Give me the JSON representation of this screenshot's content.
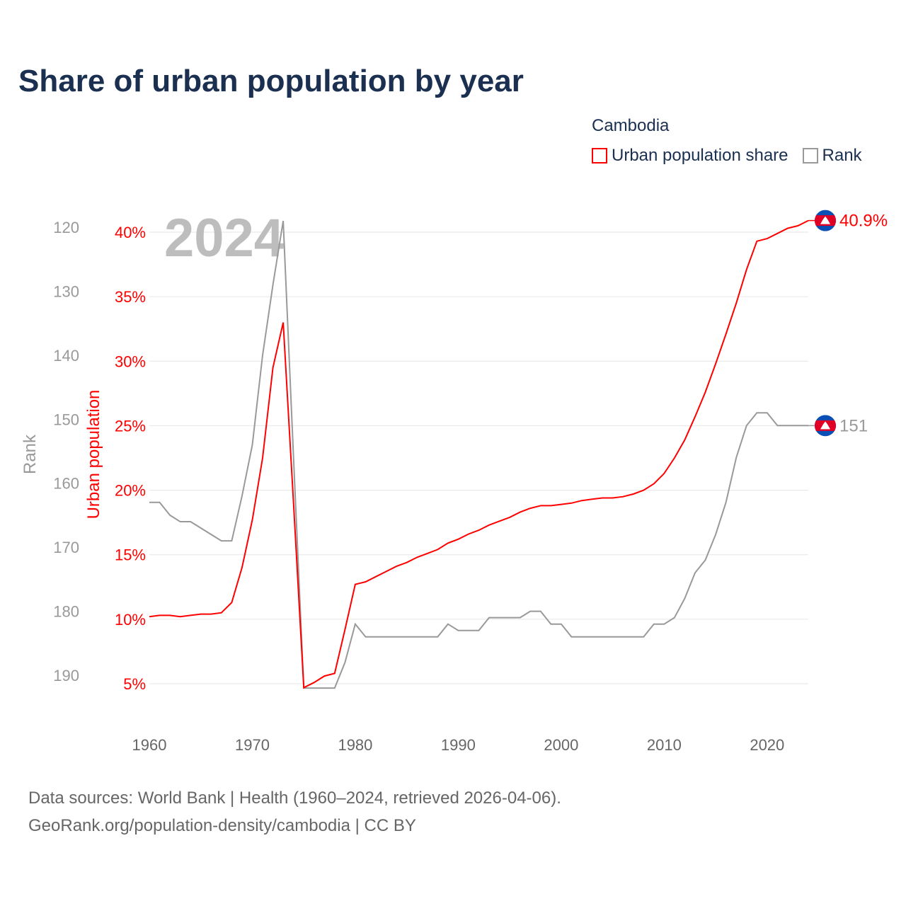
{
  "title": "Share of urban population by year",
  "legend": {
    "country": "Cambodia",
    "items": [
      {
        "label": "Urban population share",
        "color": "#ff0000"
      },
      {
        "label": "Rank",
        "color": "#999999"
      }
    ]
  },
  "footer": {
    "line1": "Data sources: World Bank | Health (1960–2024, retrieved 2026-04-06).",
    "line2": "GeoRank.org/population-density/cambodia | CC BY"
  },
  "chart_data": {
    "type": "line",
    "title": "Share of urban population by year",
    "year_watermark": "2024",
    "xlabel": "",
    "ylabel_left": "Urban population",
    "ylabel_rank": "Rank",
    "xlim": [
      1960,
      2024
    ],
    "x_ticks": [
      "1960",
      "1970",
      "1980",
      "1990",
      "2000",
      "2010",
      "2020"
    ],
    "ylim_urban": [
      5,
      40
    ],
    "urban_ticks": [
      "5%",
      "10%",
      "15%",
      "20%",
      "25%",
      "30%",
      "35%",
      "40%"
    ],
    "ylim_rank": [
      120,
      190
    ],
    "rank_ticks": [
      "120",
      "130",
      "140",
      "150",
      "160",
      "170",
      "180",
      "190"
    ],
    "grid": true,
    "legend_position": "top-right",
    "x": [
      1960,
      1961,
      1962,
      1963,
      1964,
      1965,
      1966,
      1967,
      1968,
      1969,
      1970,
      1971,
      1972,
      1973,
      1974,
      1975,
      1976,
      1977,
      1978,
      1979,
      1980,
      1981,
      1982,
      1983,
      1984,
      1985,
      1986,
      1987,
      1988,
      1989,
      1990,
      1991,
      1992,
      1993,
      1994,
      1995,
      1996,
      1997,
      1998,
      1999,
      2000,
      2001,
      2002,
      2003,
      2004,
      2005,
      2006,
      2007,
      2008,
      2009,
      2010,
      2011,
      2012,
      2013,
      2014,
      2015,
      2016,
      2017,
      2018,
      2019,
      2020,
      2021,
      2022,
      2023,
      2024
    ],
    "series": [
      {
        "name": "Urban population share",
        "unit": "%",
        "color": "#ff0000",
        "values": [
          10.2,
          10.3,
          10.3,
          10.2,
          10.3,
          10.4,
          10.4,
          10.5,
          11.3,
          14.0,
          17.7,
          22.5,
          29.5,
          33.0,
          19.0,
          4.7,
          5.1,
          5.6,
          5.8,
          9.2,
          12.7,
          12.9,
          13.3,
          13.7,
          14.1,
          14.4,
          14.8,
          15.1,
          15.4,
          15.9,
          16.2,
          16.6,
          16.9,
          17.3,
          17.6,
          17.9,
          18.3,
          18.6,
          18.8,
          18.8,
          18.9,
          19.0,
          19.2,
          19.3,
          19.4,
          19.4,
          19.5,
          19.7,
          20.0,
          20.5,
          21.3,
          22.5,
          23.9,
          25.7,
          27.6,
          29.8,
          32.1,
          34.5,
          37.1,
          39.3,
          39.5,
          39.9,
          40.3,
          40.5,
          40.9
        ],
        "end_label": "40.9%"
      },
      {
        "name": "Rank",
        "unit": "",
        "color": "#999999",
        "values": [
          163,
          163,
          165,
          166,
          166,
          167,
          168,
          169,
          169,
          162,
          154,
          140,
          129,
          119,
          156,
          192,
          192,
          192,
          192,
          188,
          182,
          184,
          184,
          184,
          184,
          184,
          184,
          184,
          184,
          182,
          183,
          183,
          183,
          181,
          181,
          181,
          181,
          180,
          180,
          182,
          182,
          184,
          184,
          184,
          184,
          184,
          184,
          184,
          184,
          182,
          182,
          181,
          178,
          174,
          172,
          168,
          163,
          156,
          151,
          149,
          149,
          151,
          151,
          151,
          151
        ],
        "end_label": "151"
      }
    ]
  }
}
